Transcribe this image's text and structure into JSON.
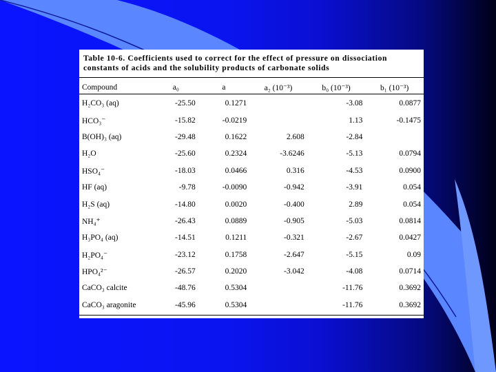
{
  "table": {
    "title_line1": "Table 10-6. Coefficients used to correct for the effect of pressure on dissociation",
    "title_line2": "constants of acids and the solubility products of carbonate solids",
    "headers": [
      "Compound",
      "a₀",
      "a",
      "a₂ (10⁻³)",
      "b₀ (10⁻³)",
      "b₁ (10⁻³)"
    ],
    "rows": [
      [
        "H₂CO₃ (aq)",
        "-25.50",
        "0.1271",
        "",
        "-3.08",
        "0.0877"
      ],
      [
        "HCO₃⁻",
        "-15.82",
        "-0.0219",
        "",
        "1.13",
        "-0.1475"
      ],
      [
        "B(OH)₃ (aq)",
        "-29.48",
        "0.1622",
        "2.608",
        "-2.84",
        ""
      ],
      [
        "H₂O",
        "-25.60",
        "0.2324",
        "-3.6246",
        "-5.13",
        "0.0794"
      ],
      [
        "HSO₄⁻",
        "-18.03",
        "0.0466",
        "0.316",
        "-4.53",
        "0.0900"
      ],
      [
        "HF (aq)",
        "-9.78",
        "-0.0090",
        "-0.942",
        "-3.91",
        "0.054"
      ],
      [
        "H₂S (aq)",
        "-14.80",
        "0.0020",
        "-0.400",
        "2.89",
        "0.054"
      ],
      [
        "NH₄⁺",
        "-26.43",
        "0.0889",
        "-0.905",
        "-5.03",
        "0.0814"
      ],
      [
        "H₃PO₄ (aq)",
        "-14.51",
        "0.1211",
        "-0.321",
        "-2.67",
        "0.0427"
      ],
      [
        "H₂PO₄⁻",
        "-23.12",
        "0.1758",
        "-2.647",
        "-5.15",
        "0.09"
      ],
      [
        "HPO₄²⁻",
        "-26.57",
        "0.2020",
        "-3.042",
        "-4.08",
        "0.0714"
      ],
      [
        "CaCO₃ calcite",
        "-48.76",
        "0.5304",
        "",
        "-11.76",
        "0.3692"
      ],
      [
        "CaCO₃ aragonite",
        "-45.96",
        "0.5304",
        "",
        "-11.76",
        "0.3692"
      ]
    ]
  },
  "colors": {
    "background_blue": "#0a14ff",
    "accent_light_blue": "#4a78ff",
    "text": "#000000",
    "panel": "#ffffff"
  }
}
